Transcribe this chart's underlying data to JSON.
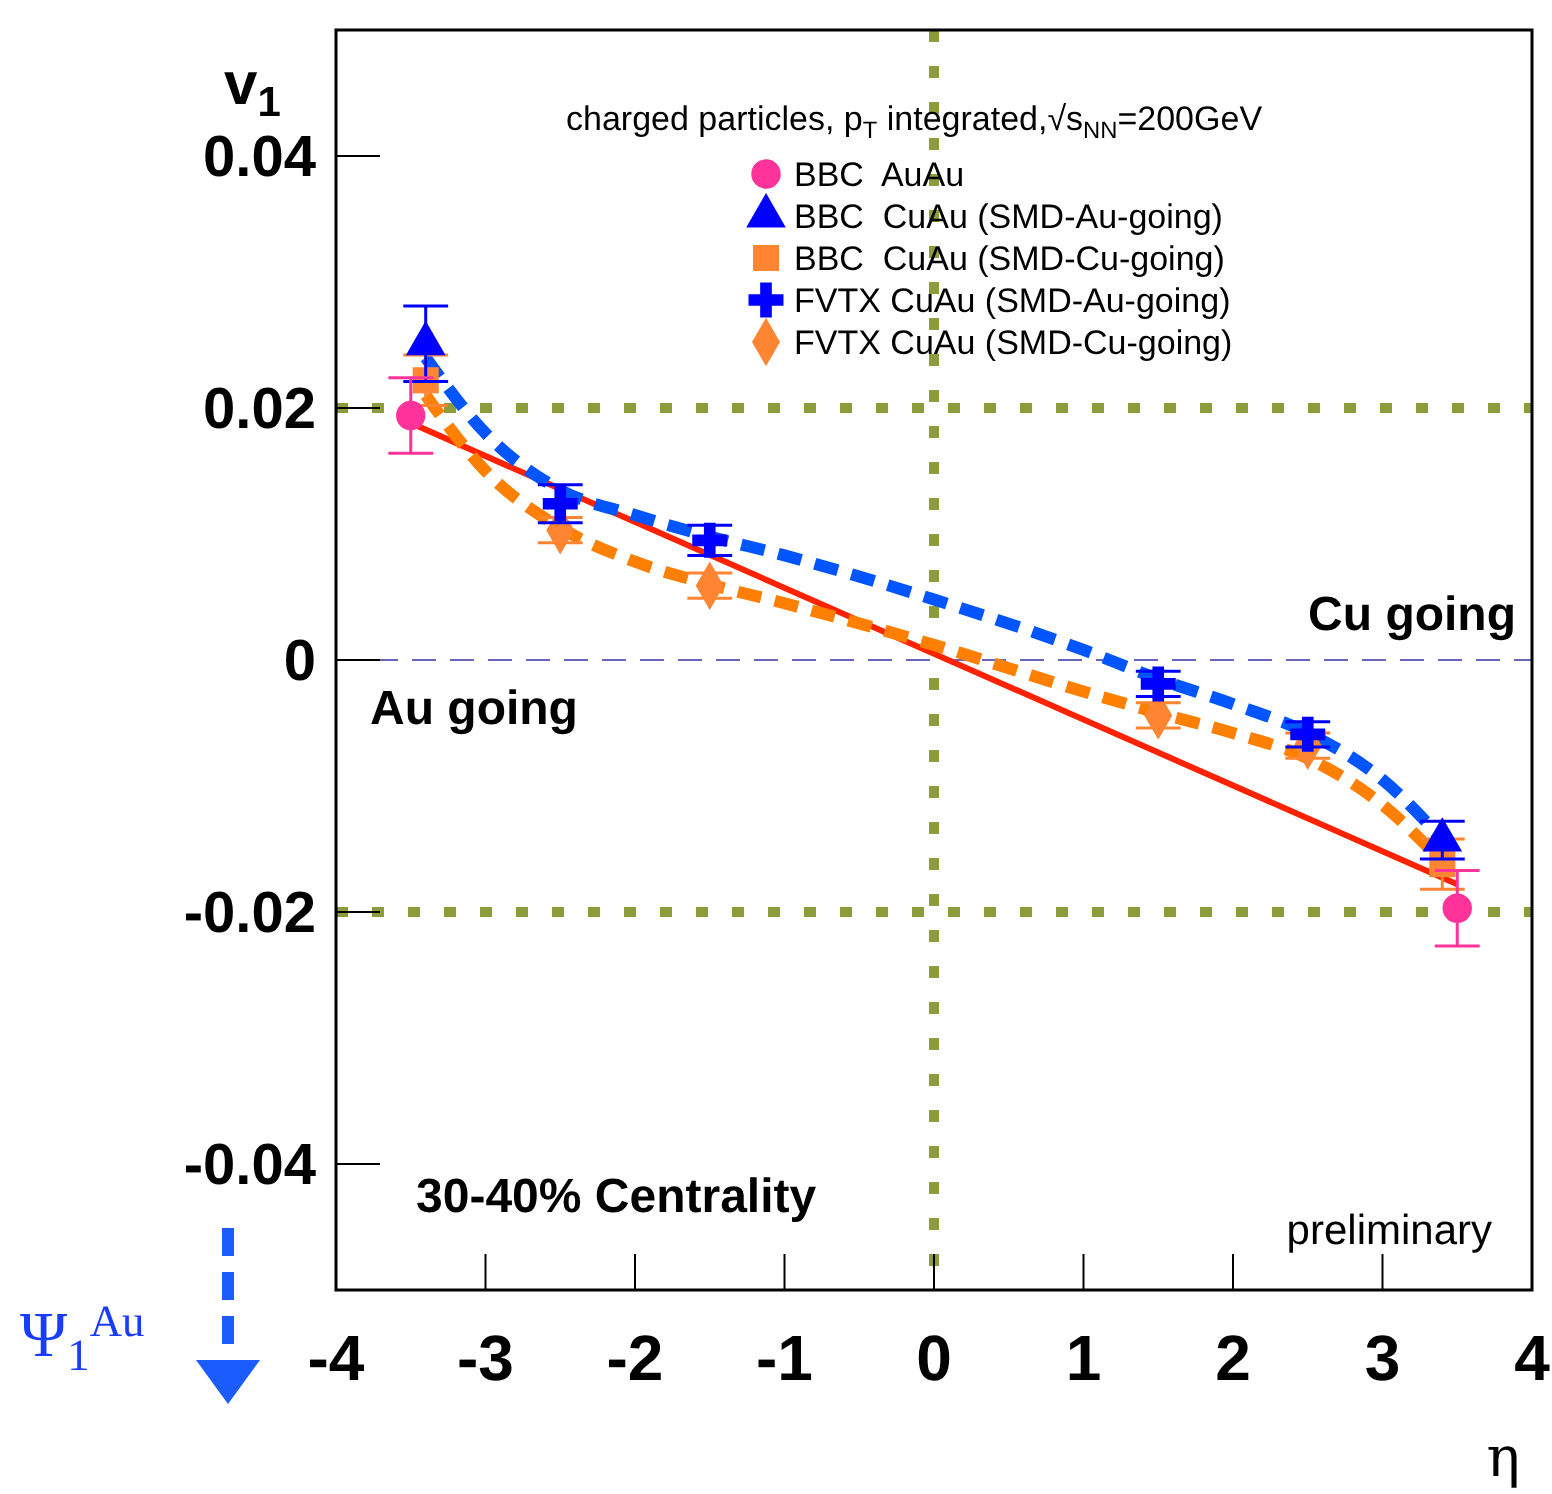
{
  "chart_data": {
    "type": "scatter",
    "xlabel": "η",
    "ylabel": "v$_{1}$",
    "legend_title": "charged particles, p$_{T}$ integrated,√s$_{NN}$=200GeV",
    "legend": "top right",
    "xlim": [
      -4,
      4
    ],
    "ylim": [
      -0.05,
      0.05
    ],
    "xticks": [
      -4,
      -3,
      -2,
      -1,
      0,
      1,
      2,
      3,
      4
    ],
    "yticks": [
      -0.04,
      -0.02,
      0,
      0.02,
      0.04
    ],
    "grid": false,
    "annotations": [
      "Au going",
      "Cu going",
      "30-40% Centrality",
      "preliminary",
      "Ψ$_{1}$$^{Au}$"
    ],
    "ref_lines": [
      {
        "axis": "x",
        "value": 0,
        "color": "#8c9c3c",
        "line_style": "dotted"
      },
      {
        "axis": "y",
        "value": 0.02,
        "color": "#8c9c3c",
        "line_style": "dotted"
      },
      {
        "axis": "y",
        "value": -0.02,
        "color": "#8c9c3c",
        "line_style": "dotted"
      },
      {
        "axis": "y",
        "value": 0,
        "color": "#6666bb",
        "line_style": "dashed"
      }
    ],
    "series": [
      {
        "type": "line",
        "color": "#ff2200",
        "line_style": "solid",
        "x": [
          -3.5,
          3.5
        ],
        "values": [
          0.0188,
          -0.0178
        ]
      },
      {
        "type": "line",
        "color": "#0055ff",
        "line_style": "dashed",
        "x": [
          -3.4,
          -3,
          -2.5,
          -2,
          -1.5,
          -1,
          0,
          1,
          1.5,
          2,
          2.5,
          3,
          3.4
        ],
        "values": [
          0.024,
          0.018,
          0.0135,
          0.0115,
          0.0098,
          0.0083,
          0.0048,
          0.0008,
          -0.0015,
          -0.0035,
          -0.0058,
          -0.0095,
          -0.0142
        ]
      },
      {
        "type": "line",
        "color": "#ff8000",
        "line_style": "dashed",
        "x": [
          -3.4,
          -3,
          -2.5,
          -2,
          -1.5,
          -1,
          0,
          1,
          1.5,
          2,
          2.5,
          3,
          3.4
        ],
        "values": [
          0.021,
          0.015,
          0.0105,
          0.0078,
          0.006,
          0.0045,
          0.0012,
          -0.0025,
          -0.0042,
          -0.0058,
          -0.0078,
          -0.0115,
          -0.016
        ]
      },
      {
        "name": "BBC  AuAu",
        "color": "#ff3399",
        "marker": "circle",
        "x": [
          -3.5,
          3.5
        ],
        "values": [
          0.0194,
          -0.0197
        ],
        "errors": [
          0.003,
          0.003
        ]
      },
      {
        "name": "BBC  CuAu (SMD-Au-going)",
        "color": "#0000ff",
        "marker": "triangle",
        "x": [
          -3.4,
          3.4
        ],
        "values": [
          0.0251,
          -0.0143
        ],
        "errors": [
          0.003,
          0.0015
        ]
      },
      {
        "name": "BBC  CuAu (SMD-Cu-going)",
        "color": "#ff8533",
        "marker": "square",
        "x": [
          -3.4,
          3.4
        ],
        "values": [
          0.0222,
          -0.0162
        ],
        "errors": [
          0.002,
          0.002
        ]
      },
      {
        "name": "FVTX CuAu (SMD-Au-going)",
        "color": "#0000ff",
        "marker": "cross",
        "x": [
          -2.5,
          -1.5,
          1.5,
          2.5
        ],
        "values": [
          0.0124,
          0.0095,
          -0.0019,
          -0.0059
        ],
        "errors": [
          0.0015,
          0.0012,
          0.001,
          0.001
        ]
      },
      {
        "name": "FVTX CuAu (SMD-Cu-going)",
        "color": "#ff8533",
        "marker": "diamond",
        "x": [
          -2.5,
          -1.5,
          1.5,
          2.5
        ],
        "values": [
          0.0103,
          0.0059,
          -0.0044,
          -0.0068
        ],
        "errors": [
          0.001,
          0.001,
          0.001,
          0.001
        ]
      }
    ]
  }
}
